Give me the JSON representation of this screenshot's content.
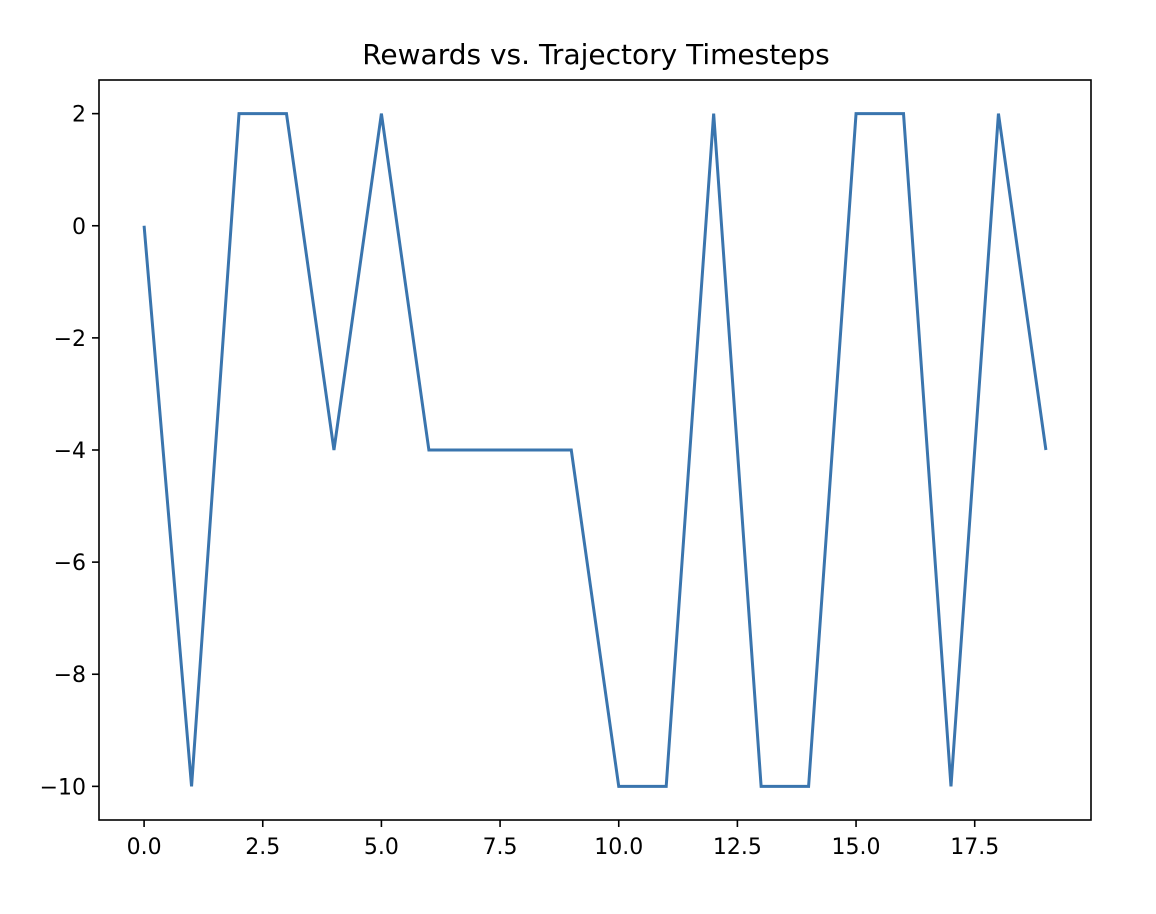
{
  "chart_data": {
    "type": "line",
    "title": "Rewards vs. Trajectory Timesteps",
    "xlabel": "",
    "ylabel": "",
    "xlim": [
      -0.95,
      19.95
    ],
    "ylim": [
      -10.6,
      2.6
    ],
    "x_ticks": [
      0.0,
      2.5,
      5.0,
      7.5,
      10.0,
      12.5,
      15.0,
      17.5
    ],
    "x_tick_labels": [
      "0.0",
      "2.5",
      "5.0",
      "7.5",
      "10.0",
      "12.5",
      "15.0",
      "17.5"
    ],
    "y_ticks": [
      2,
      0,
      -2,
      -4,
      -6,
      -8,
      -10
    ],
    "y_tick_labels": [
      "2",
      "0",
      "−2",
      "−4",
      "−6",
      "−8",
      "−10"
    ],
    "grid": false,
    "series": [
      {
        "color": "#3a75ae",
        "x": [
          0,
          1,
          2,
          3,
          4,
          5,
          6,
          7,
          8,
          9,
          10,
          11,
          12,
          13,
          14,
          15,
          16,
          17,
          18,
          19
        ],
        "values": [
          0,
          -10,
          2,
          2,
          -4,
          2,
          -4,
          -4,
          -4,
          -4,
          -10,
          -10,
          2,
          -10,
          -10,
          2,
          2,
          -10,
          2,
          -4
        ]
      }
    ]
  }
}
